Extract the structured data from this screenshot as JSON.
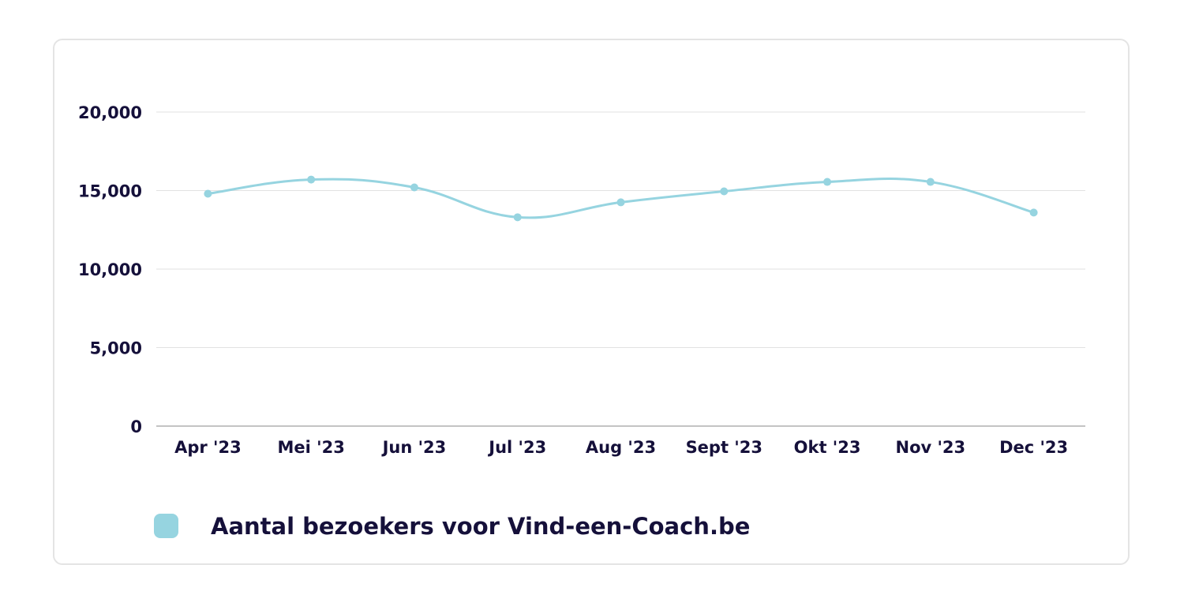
{
  "chart_data": {
    "type": "line",
    "categories": [
      "Apr '23",
      "Mei '23",
      "Jun '23",
      "Jul '23",
      "Aug '23",
      "Sept '23",
      "Okt '23",
      "Nov '23",
      "Dec '23"
    ],
    "series": [
      {
        "name": "Aantal bezoekers voor Vind-een-Coach.be",
        "values": [
          14800,
          15700,
          15200,
          13300,
          14250,
          14950,
          15550,
          15550,
          13600
        ],
        "color": "#96d4e0"
      }
    ],
    "y_ticks": [
      "0",
      "5,000",
      "10,000",
      "15,000",
      "20,000"
    ],
    "ylim": [
      0,
      20000
    ],
    "grid": true,
    "smooth": true,
    "legend_position": "bottom-left"
  }
}
